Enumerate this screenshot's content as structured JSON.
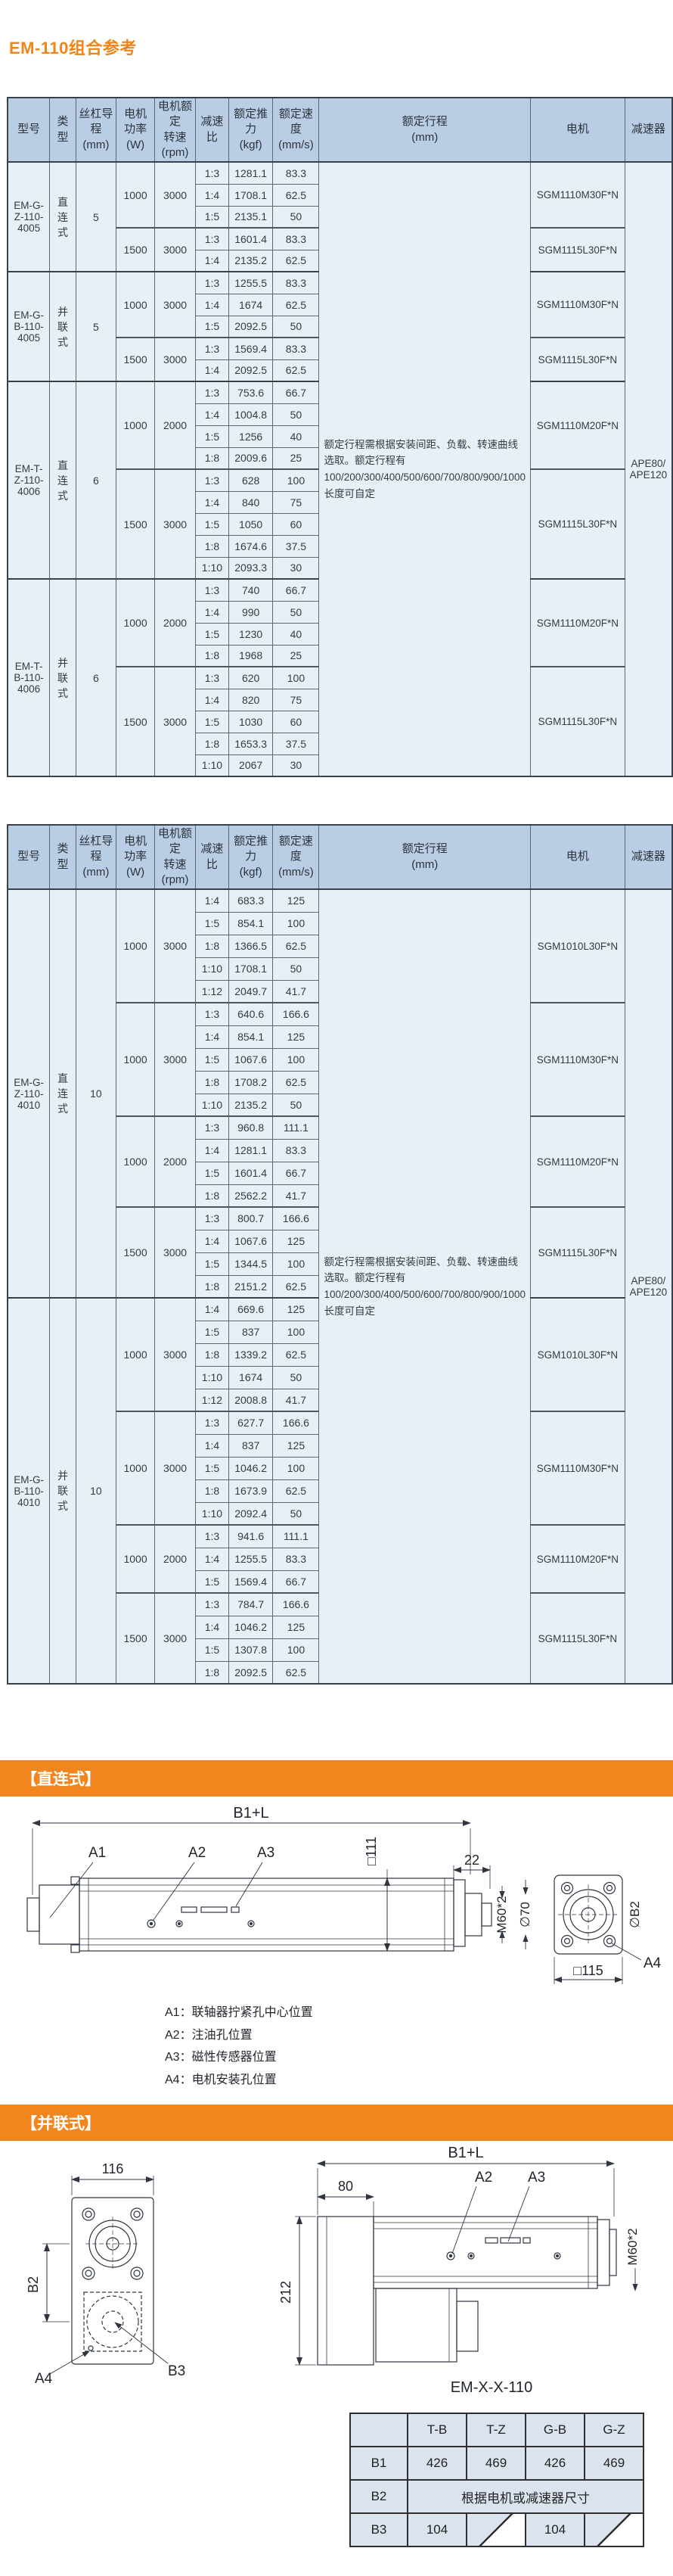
{
  "page": {
    "title": "EM-110组合参考"
  },
  "colors": {
    "accent_orange": "#F0861D",
    "table_header_bg": "#B9CDE4",
    "table_body_bg": "#E9EFF7"
  },
  "spec_headers": [
    [
      "型号"
    ],
    [
      "类型"
    ],
    [
      "丝杠导程",
      "(mm)"
    ],
    [
      "电机功率",
      "(W)"
    ],
    [
      "电机额定",
      "转速",
      "(rpm)"
    ],
    [
      "减速比"
    ],
    [
      "额定推力",
      "(kgf)"
    ],
    [
      "额定速度",
      "(mm/s)"
    ],
    [
      "额定行程",
      "(mm)"
    ],
    [
      "电机"
    ],
    [
      "减速器"
    ]
  ],
  "stroke_note": "额定行程需根据安装间距、负载、转速曲线选取。额定行程有100/200/300/400/500/600/700/800/900/1000长度可自定",
  "reducer_lines": [
    "APE80/",
    "APE120"
  ],
  "table1": {
    "blocks": [
      {
        "model": "EM-G-Z-110-4005",
        "type": "直连式",
        "lead": "5",
        "subs": [
          {
            "power": "1000",
            "rpm": "3000",
            "motor": "SGM1110M30F*N",
            "rows": [
              [
                "1:3",
                "1281.1",
                "83.3"
              ],
              [
                "1:4",
                "1708.1",
                "62.5"
              ],
              [
                "1:5",
                "2135.1",
                "50"
              ]
            ]
          },
          {
            "power": "1500",
            "rpm": "3000",
            "motor": "SGM1115L30F*N",
            "rows": [
              [
                "1:3",
                "1601.4",
                "83.3"
              ],
              [
                "1:4",
                "2135.2",
                "62.5"
              ]
            ]
          }
        ]
      },
      {
        "model": "EM-G-B-110-4005",
        "type": "并联式",
        "lead": "5",
        "subs": [
          {
            "power": "1000",
            "rpm": "3000",
            "motor": "SGM1110M30F*N",
            "rows": [
              [
                "1:3",
                "1255.5",
                "83.3"
              ],
              [
                "1:4",
                "1674",
                "62.5"
              ],
              [
                "1:5",
                "2092.5",
                "50"
              ]
            ]
          },
          {
            "power": "1500",
            "rpm": "3000",
            "motor": "SGM1115L30F*N",
            "rows": [
              [
                "1:3",
                "1569.4",
                "83.3"
              ],
              [
                "1:4",
                "2092.5",
                "62.5"
              ]
            ]
          }
        ]
      },
      {
        "model": "EM-T-Z-110-4006",
        "type": "直连式",
        "lead": "6",
        "subs": [
          {
            "power": "1000",
            "rpm": "2000",
            "motor": "SGM1110M20F*N",
            "rows": [
              [
                "1:3",
                "753.6",
                "66.7"
              ],
              [
                "1:4",
                "1004.8",
                "50"
              ],
              [
                "1:5",
                "1256",
                "40"
              ],
              [
                "1:8",
                "2009.6",
                "25"
              ]
            ]
          },
          {
            "power": "1500",
            "rpm": "3000",
            "motor": "SGM1115L30F*N",
            "rows": [
              [
                "1:3",
                "628",
                "100"
              ],
              [
                "1:4",
                "840",
                "75"
              ],
              [
                "1:5",
                "1050",
                "60"
              ],
              [
                "1:8",
                "1674.6",
                "37.5"
              ],
              [
                "1:10",
                "2093.3",
                "30"
              ]
            ]
          }
        ]
      },
      {
        "model": "EM-T-B-110-4006",
        "type": "并联式",
        "lead": "6",
        "subs": [
          {
            "power": "1000",
            "rpm": "2000",
            "motor": "SGM1110M20F*N",
            "rows": [
              [
                "1:3",
                "740",
                "66.7"
              ],
              [
                "1:4",
                "990",
                "50"
              ],
              [
                "1:5",
                "1230",
                "40"
              ],
              [
                "1:8",
                "1968",
                "25"
              ]
            ]
          },
          {
            "power": "1500",
            "rpm": "3000",
            "motor": "SGM1115L30F*N",
            "rows": [
              [
                "1:3",
                "620",
                "100"
              ],
              [
                "1:4",
                "820",
                "75"
              ],
              [
                "1:5",
                "1030",
                "60"
              ],
              [
                "1:8",
                "1653.3",
                "37.5"
              ],
              [
                "1:10",
                "2067",
                "30"
              ]
            ]
          }
        ]
      }
    ]
  },
  "table2": {
    "blocks": [
      {
        "model": "EM-G-Z-110-4010",
        "type": "直连式",
        "lead": "10",
        "subs": [
          {
            "power": "1000",
            "rpm": "3000",
            "motor": "SGM1010L30F*N",
            "rows": [
              [
                "1:4",
                "683.3",
                "125"
              ],
              [
                "1:5",
                "854.1",
                "100"
              ],
              [
                "1:8",
                "1366.5",
                "62.5"
              ],
              [
                "1:10",
                "1708.1",
                "50"
              ],
              [
                "1:12",
                "2049.7",
                "41.7"
              ]
            ]
          },
          {
            "power": "1000",
            "rpm": "3000",
            "motor": "SGM1110M30F*N",
            "rows": [
              [
                "1:3",
                "640.6",
                "166.6"
              ],
              [
                "1:4",
                "854.1",
                "125"
              ],
              [
                "1:5",
                "1067.6",
                "100"
              ],
              [
                "1:8",
                "1708.2",
                "62.5"
              ],
              [
                "1:10",
                "2135.2",
                "50"
              ]
            ]
          },
          {
            "power": "1000",
            "rpm": "2000",
            "motor": "SGM1110M20F*N",
            "rows": [
              [
                "1:3",
                "960.8",
                "111.1"
              ],
              [
                "1:4",
                "1281.1",
                "83.3"
              ],
              [
                "1:5",
                "1601.4",
                "66.7"
              ],
              [
                "1:8",
                "2562.2",
                "41.7"
              ]
            ]
          },
          {
            "power": "1500",
            "rpm": "3000",
            "motor": "SGM1115L30F*N",
            "rows": [
              [
                "1:3",
                "800.7",
                "166.6"
              ],
              [
                "1:4",
                "1067.6",
                "125"
              ],
              [
                "1:5",
                "1344.5",
                "100"
              ],
              [
                "1:8",
                "2151.2",
                "62.5"
              ]
            ]
          }
        ]
      },
      {
        "model": "EM-G-B-110-4010",
        "type": "并联式",
        "lead": "10",
        "subs": [
          {
            "power": "1000",
            "rpm": "3000",
            "motor": "SGM1010L30F*N",
            "rows": [
              [
                "1:4",
                "669.6",
                "125"
              ],
              [
                "1:5",
                "837",
                "100"
              ],
              [
                "1:8",
                "1339.2",
                "62.5"
              ],
              [
                "1:10",
                "1674",
                "50"
              ],
              [
                "1:12",
                "2008.8",
                "41.7"
              ]
            ]
          },
          {
            "power": "1000",
            "rpm": "3000",
            "motor": "SGM1110M30F*N",
            "rows": [
              [
                "1:3",
                "627.7",
                "166.6"
              ],
              [
                "1:4",
                "837",
                "125"
              ],
              [
                "1:5",
                "1046.2",
                "100"
              ],
              [
                "1:8",
                "1673.9",
                "62.5"
              ],
              [
                "1:10",
                "2092.4",
                "50"
              ]
            ]
          },
          {
            "power": "1000",
            "rpm": "2000",
            "motor": "SGM1110M20F*N",
            "rows": [
              [
                "1:3",
                "941.6",
                "111.1"
              ],
              [
                "1:4",
                "1255.5",
                "83.3"
              ],
              [
                "1:5",
                "1569.4",
                "66.7"
              ]
            ]
          },
          {
            "power": "1500",
            "rpm": "3000",
            "motor": "SGM1115L30F*N",
            "rows": [
              [
                "1:3",
                "784.7",
                "166.6"
              ],
              [
                "1:4",
                "1046.2",
                "125"
              ],
              [
                "1:5",
                "1307.8",
                "100"
              ],
              [
                "1:8",
                "2092.5",
                "62.5"
              ]
            ]
          }
        ]
      }
    ]
  },
  "diagram_direct": {
    "banner": "【直连式】",
    "dim_total": "B1+L",
    "dim_22": "22",
    "dim_sq111": "□111",
    "dim_m60": "M60*2",
    "dim_d70": "∅70",
    "dim_db2": "∅B2",
    "dim_sq115": "□115",
    "label_a1": "A1",
    "label_a2": "A2",
    "label_a3": "A3",
    "label_a4": "A4",
    "notes": [
      "A1：联轴器拧紧孔中心位置",
      "A2：注油孔位置",
      "A3：磁性传感器位置",
      "A4：电机安装孔位置"
    ]
  },
  "diagram_parallel": {
    "banner": "【并联式】",
    "dim_total": "B1+L",
    "dim_80": "80",
    "dim_116": "116",
    "dim_212": "212",
    "dim_b2": "B2",
    "dim_m60": "M60*2",
    "label_a2": "A2",
    "label_a3": "A3",
    "label_a4": "A4",
    "label_b3": "B3",
    "caption": "EM-X-X-110"
  },
  "dims_table": {
    "headers": [
      "",
      "T-B",
      "T-Z",
      "G-B",
      "G-Z"
    ],
    "rows": [
      {
        "name": "B1",
        "values": [
          "426",
          "469",
          "426",
          "469"
        ]
      },
      {
        "name": "B2",
        "span_text": "根据电机或减速器尺寸"
      },
      {
        "name": "B3",
        "values": [
          "104",
          null,
          "104",
          null
        ]
      }
    ]
  }
}
